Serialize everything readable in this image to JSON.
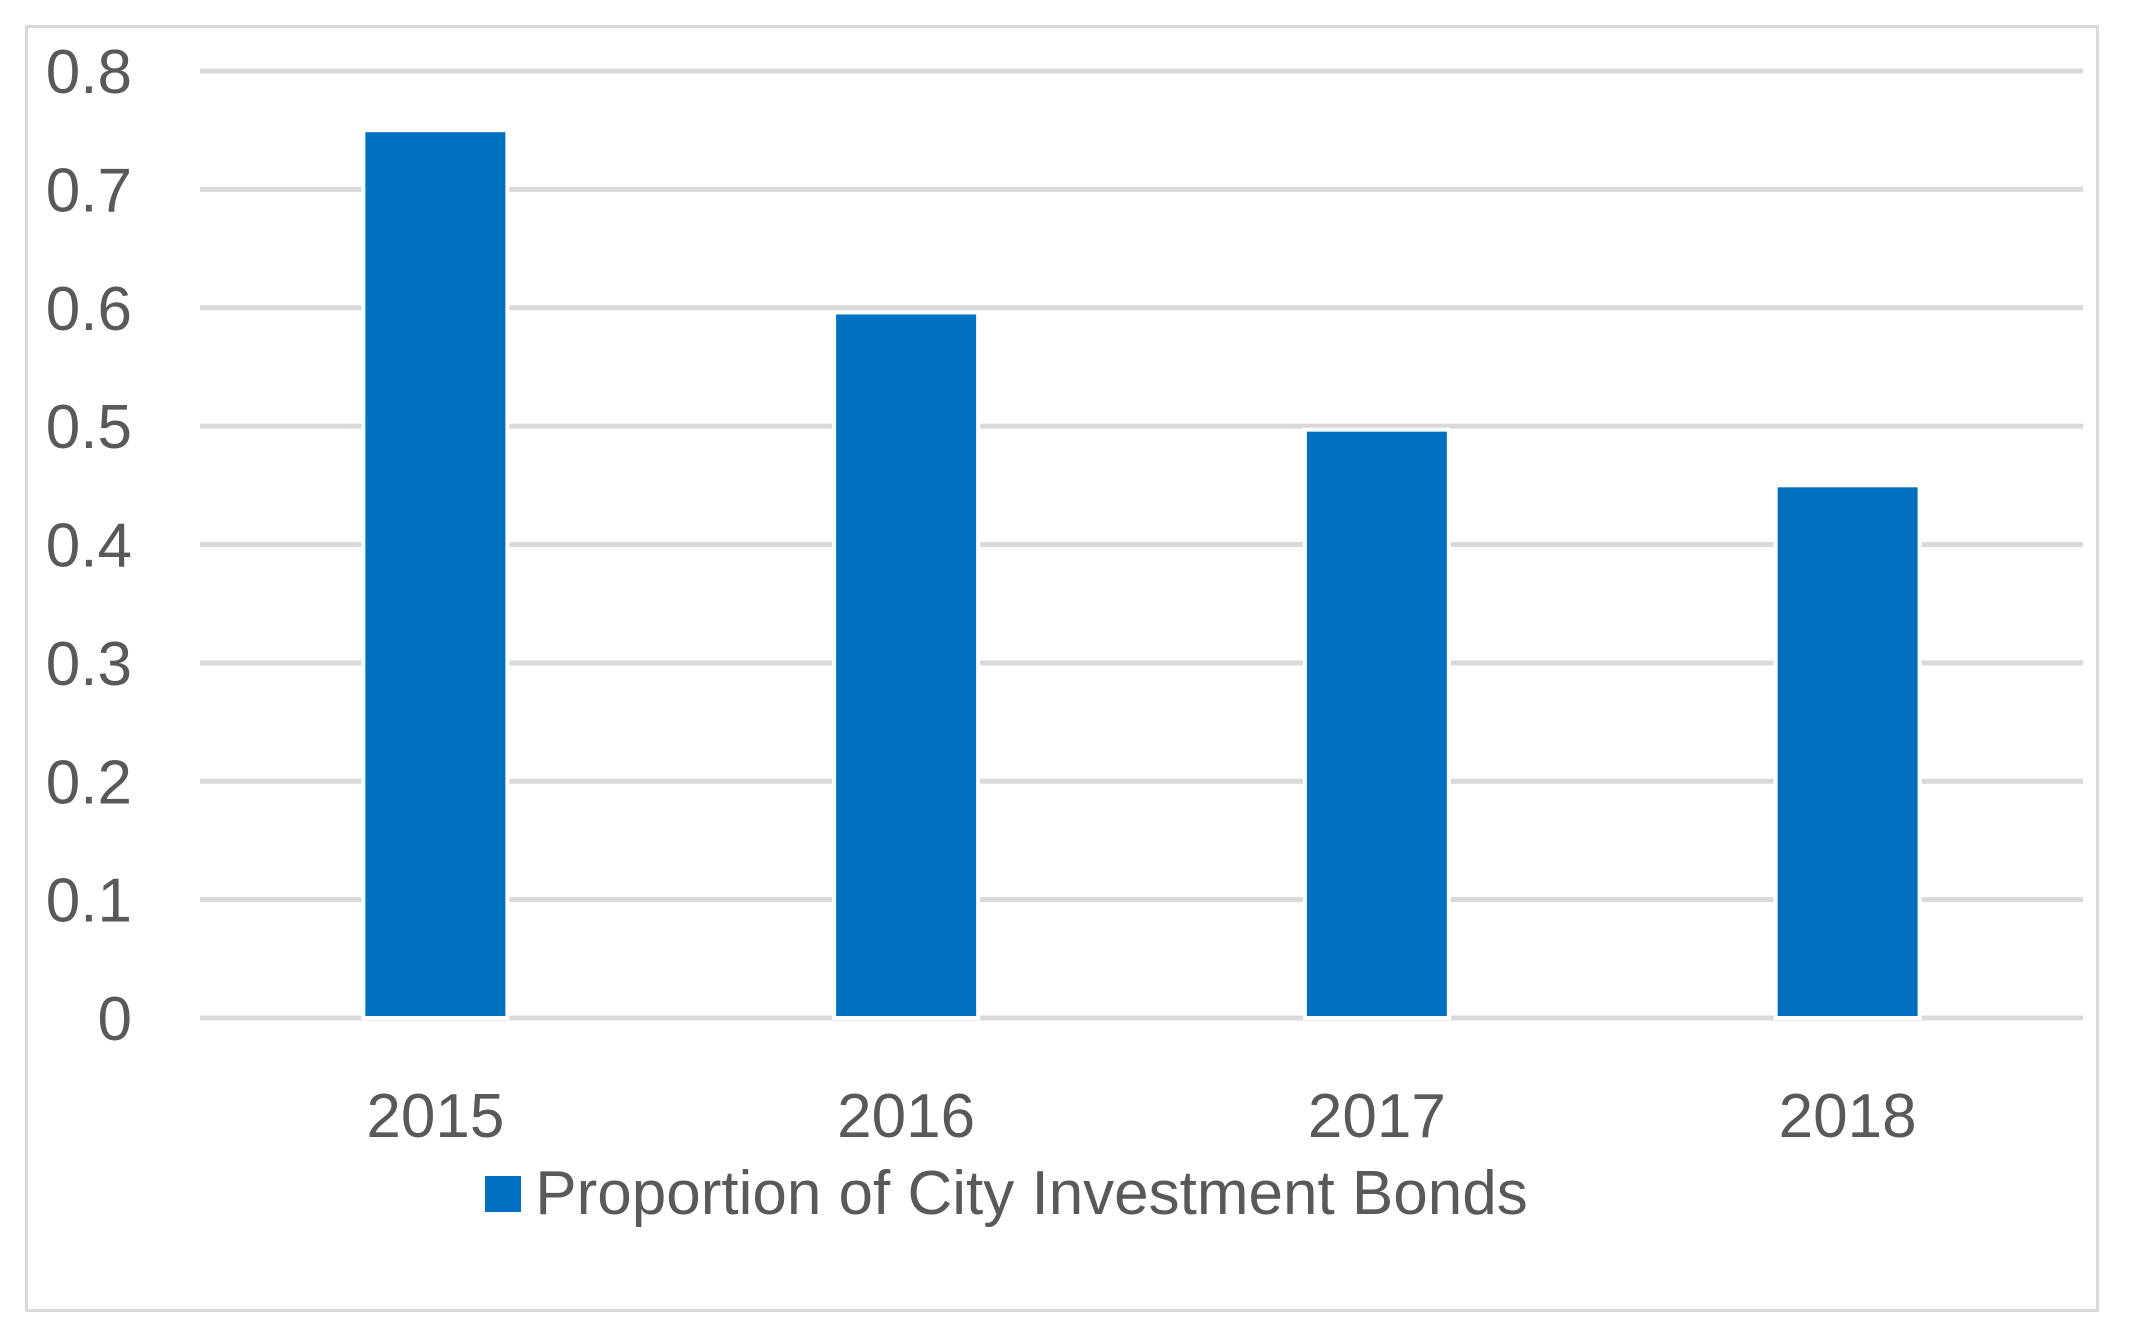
{
  "chart_data": {
    "type": "bar",
    "categories": [
      "2015",
      "2016",
      "2017",
      "2018"
    ],
    "series": [
      {
        "name": "Proportion of City Investment Bonds",
        "values": [
          0.75,
          0.596,
          0.497,
          0.45
        ],
        "color": "#0070c0"
      }
    ],
    "ylim": [
      0,
      0.8
    ],
    "yticks": [
      "0",
      "0.1",
      "0.2",
      "0.3",
      "0.4",
      "0.5",
      "0.6",
      "0.7",
      "0.8"
    ],
    "title": "",
    "xlabel": "",
    "ylabel": "",
    "grid": true,
    "legend": "bottom",
    "gridColor": "#d9d9d9",
    "textColor": "#595959"
  }
}
